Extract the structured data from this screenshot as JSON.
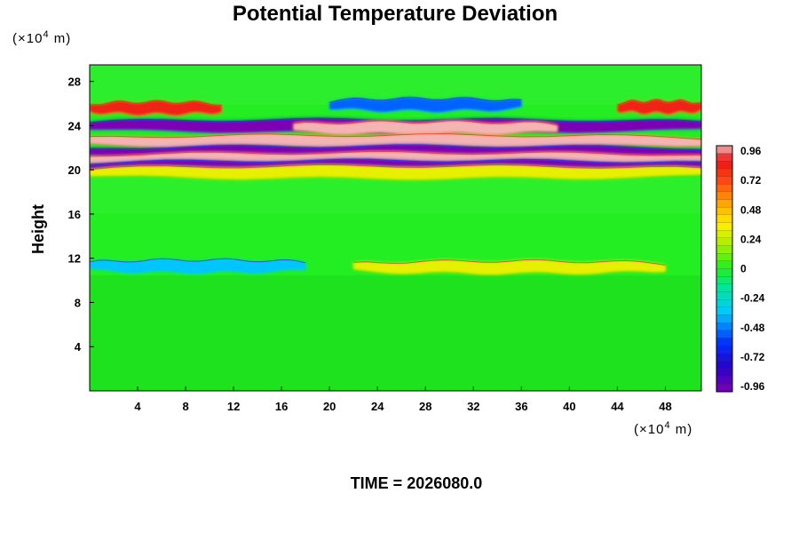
{
  "chart_data": {
    "type": "heatmap",
    "title": "Potential Temperature Deviation",
    "xlabel": "",
    "ylabel": "Height",
    "x_unit": {
      "prefix": "(×10",
      "exp": "4",
      "suffix": " m)"
    },
    "y_unit": {
      "prefix": "(×10",
      "exp": "4",
      "suffix": " m)"
    },
    "x_ticks": [
      4,
      8,
      12,
      16,
      20,
      24,
      28,
      32,
      36,
      40,
      44,
      48
    ],
    "y_ticks": [
      4,
      8,
      12,
      16,
      20,
      24,
      28
    ],
    "xlim": [
      0,
      51
    ],
    "ylim": [
      0,
      29.5
    ],
    "colorbar": {
      "ticks": [
        "0.96",
        "0.72",
        "0.48",
        "0.24",
        "0",
        "-0.24",
        "-0.48",
        "-0.72",
        "-0.96"
      ],
      "range": [
        -0.96,
        0.96
      ],
      "levels": 32
    },
    "colors": {
      "background_field": "#22ee22",
      "positive_max": "#f4b4b4",
      "negative_max": "#7b00b4"
    },
    "bands": [
      {
        "y": 25.6,
        "x_from": 0,
        "x_to": 11,
        "value": 0.8
      },
      {
        "y": 25.7,
        "x_from": 44,
        "x_to": 51,
        "value": 0.8
      },
      {
        "y": 25.9,
        "x_from": 20,
        "x_to": 36,
        "value": -0.5
      },
      {
        "y": 24.0,
        "x_from": 0,
        "x_to": 51,
        "value": -0.96
      },
      {
        "y": 23.8,
        "x_from": 17,
        "x_to": 39,
        "value": 0.96
      },
      {
        "y": 22.6,
        "x_from": 0,
        "x_to": 51,
        "value": 0.96
      },
      {
        "y": 21.6,
        "x_from": 0,
        "x_to": 51,
        "value": -0.96
      },
      {
        "y": 21.0,
        "x_from": 0,
        "x_to": 51,
        "value": 0.96
      },
      {
        "y": 20.3,
        "x_from": 0,
        "x_to": 51,
        "value": -0.96
      },
      {
        "y": 19.8,
        "x_from": 0,
        "x_to": 51,
        "value": 0.3
      },
      {
        "y": 11.3,
        "x_from": 0,
        "x_to": 18,
        "value": -0.35
      },
      {
        "y": 11.2,
        "x_from": 22,
        "x_to": 48,
        "value": 0.3
      }
    ]
  },
  "time_label": "TIME = 2026080.0"
}
